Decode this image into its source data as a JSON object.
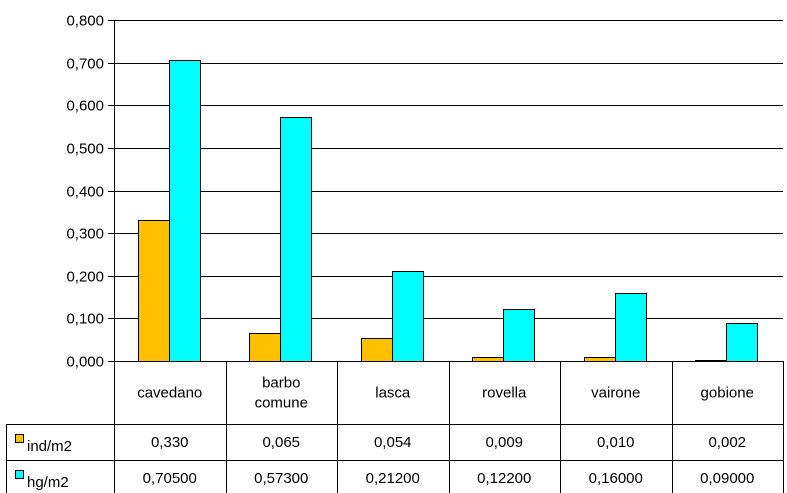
{
  "chart_data": {
    "type": "bar",
    "categories": [
      [
        "cavedano"
      ],
      [
        "barbo",
        "comune"
      ],
      [
        "lasca"
      ],
      [
        "rovella"
      ],
      [
        "vairone"
      ],
      [
        "gobione"
      ]
    ],
    "series": [
      {
        "name": "ind/m2",
        "color": "#FFC000",
        "values": [
          0.33,
          0.065,
          0.054,
          0.009,
          0.01,
          0.002
        ],
        "table_values": [
          "0,330",
          "0,065",
          "0,054",
          "0,009",
          "0,010",
          "0,002"
        ]
      },
      {
        "name": "hg/m2",
        "color": "#00FFFF",
        "values": [
          0.705,
          0.573,
          0.212,
          0.122,
          0.16,
          0.09
        ],
        "table_values": [
          "0,70500",
          "0,57300",
          "0,21200",
          "0,12200",
          "0,16000",
          "0,09000"
        ]
      }
    ],
    "ylim": [
      0,
      0.8
    ],
    "yticks": [
      0,
      0.1,
      0.2,
      0.3,
      0.4,
      0.5,
      0.6,
      0.7,
      0.8
    ],
    "ytick_labels": [
      "0,000",
      "0,100",
      "0,200",
      "0,300",
      "0,400",
      "0,500",
      "0,600",
      "0,700",
      "0,800"
    ],
    "grid": true,
    "legend": "data-table"
  }
}
